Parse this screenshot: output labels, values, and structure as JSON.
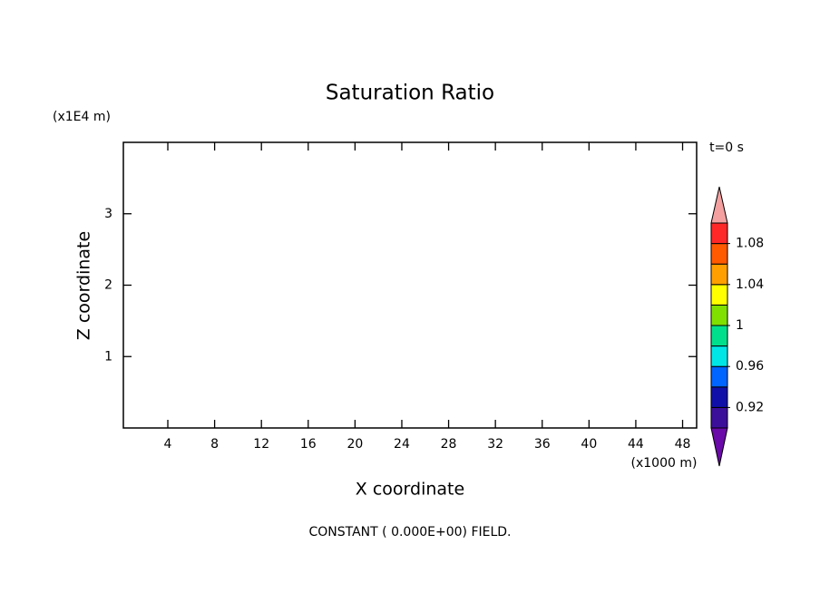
{
  "chart_data": {
    "type": "contour",
    "title": "Saturation Ratio",
    "x_label": "X coordinate",
    "y_label": "Z coordinate",
    "x_unit": "(x1000 m)",
    "y_unit": "(x1E4 m)",
    "time_label": "t=0 s",
    "footnote": "CONSTANT ( 0.000E+00) FIELD.",
    "xlim": [
      0.2,
      49.2
    ],
    "xticks": [
      4,
      8,
      12,
      16,
      20,
      24,
      28,
      32,
      36,
      40,
      44,
      48
    ],
    "ylim": [
      0,
      4
    ],
    "yticks": [
      1,
      2,
      3
    ],
    "colorbar": {
      "levels": [
        0.9,
        0.92,
        0.94,
        0.96,
        0.98,
        1,
        1.02,
        1.04,
        1.06,
        1.08,
        1.1
      ],
      "ticks": [
        0.92,
        0.96,
        1,
        1.04,
        1.08
      ],
      "colors": [
        "#3c0f9b",
        "#1010a8",
        "#0064ff",
        "#00e6e6",
        "#00e08c",
        "#80e000",
        "#ffff00",
        "#ffa000",
        "#ff5a00",
        "#ff2828"
      ],
      "under_color": "#6a0aa8",
      "over_color": "#f4a0a0"
    }
  }
}
